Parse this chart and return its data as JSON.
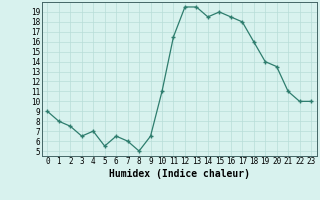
{
  "x": [
    0,
    1,
    2,
    3,
    4,
    5,
    6,
    7,
    8,
    9,
    10,
    11,
    12,
    13,
    14,
    15,
    16,
    17,
    18,
    19,
    20,
    21,
    22,
    23
  ],
  "y": [
    9.0,
    8.0,
    7.5,
    6.5,
    7.0,
    5.5,
    6.5,
    6.0,
    5.0,
    6.5,
    11.0,
    16.5,
    19.5,
    19.5,
    18.5,
    19.0,
    18.5,
    18.0,
    16.0,
    14.0,
    13.5,
    11.0,
    10.0,
    10.0
  ],
  "xlabel": "Humidex (Indice chaleur)",
  "ylim": [
    4.5,
    20.0
  ],
  "xlim": [
    -0.5,
    23.5
  ],
  "yticks": [
    5,
    6,
    7,
    8,
    9,
    10,
    11,
    12,
    13,
    14,
    15,
    16,
    17,
    18,
    19
  ],
  "xticks": [
    0,
    1,
    2,
    3,
    4,
    5,
    6,
    7,
    8,
    9,
    10,
    11,
    12,
    13,
    14,
    15,
    16,
    17,
    18,
    19,
    20,
    21,
    22,
    23
  ],
  "line_color": "#2e7d6e",
  "marker_color": "#2e7d6e",
  "bg_color": "#d8f2ee",
  "grid_color": "#b8ddd8",
  "tick_fontsize": 5.5,
  "xlabel_fontsize": 7.0
}
